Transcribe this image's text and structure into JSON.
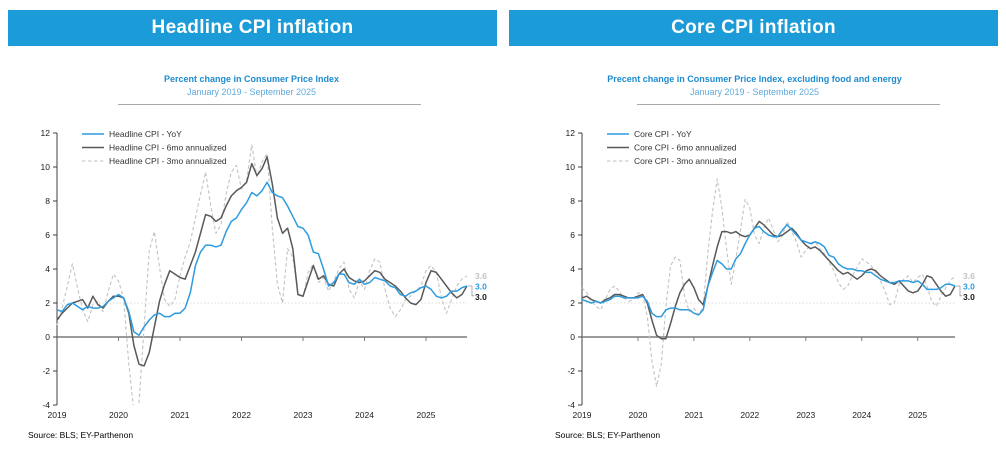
{
  "colors": {
    "banner_blue": "#1B9CD8",
    "title_blue": "#1E8BD0",
    "subtitle_blue": "#5FABDE",
    "yoy_blue": "#2E9BDF",
    "six_mo_gray": "#595959",
    "three_mo_gray": "#C2C2C2",
    "end_label_black": "#1A1A1A",
    "zero_axis_gray": "#7A7A7A",
    "reference_line_gray": "#DBDBDB"
  },
  "panels": [
    {
      "banner": "Headline CPI inflation",
      "source": "Source: BLS; EY-Parthenon"
    },
    {
      "banner": "Core CPI inflation",
      "source": "Source: BLS; EY-Parthenon"
    }
  ],
  "chart_data": [
    {
      "type": "line",
      "title": "Percent change in Consumer Price Index",
      "subtitle": "January 2019 - September 2025",
      "x_start": "2019-01",
      "x_end": "2025-09",
      "x_tick_labels": [
        "2019",
        "2020",
        "2021",
        "2022",
        "2023",
        "2024",
        "2025"
      ],
      "ylim": [
        -4,
        12
      ],
      "y_ticks": [
        12,
        10,
        8,
        6,
        4,
        2,
        0,
        -2,
        -4
      ],
      "reference_line": 2,
      "grid": false,
      "legend_position": "top-left",
      "series": [
        {
          "name": "Headline CPI - YoY",
          "color": "#2E9BDF",
          "dash": "solid",
          "values": [
            1.6,
            1.5,
            1.9,
            2.0,
            1.8,
            1.6,
            1.8,
            1.7,
            1.7,
            1.8,
            2.1,
            2.3,
            2.5,
            2.3,
            1.5,
            0.3,
            0.1,
            0.6,
            1.0,
            1.3,
            1.4,
            1.2,
            1.2,
            1.4,
            1.4,
            1.7,
            2.6,
            4.2,
            5.0,
            5.4,
            5.4,
            5.3,
            5.4,
            6.2,
            6.8,
            7.0,
            7.5,
            7.9,
            8.5,
            8.3,
            8.6,
            9.1,
            8.5,
            8.3,
            8.2,
            7.7,
            7.1,
            6.5,
            6.4,
            6.0,
            5.0,
            4.9,
            4.0,
            3.0,
            3.2,
            3.7,
            3.7,
            3.2,
            3.1,
            3.4,
            3.1,
            3.2,
            3.5,
            3.4,
            3.3,
            3.0,
            2.9,
            2.5,
            2.4,
            2.6,
            2.7,
            2.9,
            3.0,
            2.8,
            2.4,
            2.3,
            2.4,
            2.7,
            2.7,
            2.9,
            3.0
          ]
        },
        {
          "name": "Headline CPI - 6mo annualized",
          "color": "#595959",
          "dash": "solid",
          "values": [
            1.0,
            1.4,
            1.7,
            2.0,
            2.1,
            2.2,
            1.7,
            2.4,
            1.9,
            1.7,
            2.1,
            2.4,
            2.4,
            2.3,
            1.4,
            -0.5,
            -1.6,
            -1.7,
            -0.9,
            0.6,
            2.1,
            3.1,
            3.9,
            3.7,
            3.5,
            3.4,
            4.2,
            5.0,
            6.1,
            7.2,
            7.1,
            6.8,
            7.0,
            7.7,
            8.3,
            8.6,
            8.8,
            9.1,
            10.2,
            9.5,
            9.9,
            10.6,
            9.0,
            7.0,
            6.1,
            6.4,
            5.2,
            2.5,
            2.4,
            3.3,
            4.2,
            3.4,
            3.6,
            3.1,
            3.0,
            3.7,
            4.0,
            3.5,
            3.3,
            3.2,
            3.3,
            3.6,
            3.9,
            3.8,
            3.4,
            3.2,
            3.0,
            2.7,
            2.3,
            2.0,
            1.9,
            2.2,
            3.2,
            3.9,
            3.8,
            3.4,
            3.0,
            2.6,
            2.3,
            2.5,
            3.0
          ]
        },
        {
          "name": "Headline CPI - 3mo annualized",
          "color": "#C2C2C2",
          "dash": "dashed",
          "values": [
            0.7,
            1.7,
            3.0,
            4.3,
            2.9,
            1.6,
            0.9,
            1.9,
            2.1,
            1.5,
            2.7,
            3.7,
            3.3,
            2.3,
            -1.6,
            -4.4,
            -3.9,
            0.6,
            5.1,
            6.2,
            4.1,
            2.2,
            1.8,
            2.2,
            3.6,
            4.7,
            5.6,
            7.0,
            8.4,
            9.7,
            7.7,
            6.1,
            6.6,
            8.4,
            9.7,
            10.1,
            8.7,
            9.2,
            11.3,
            9.4,
            10.3,
            10.8,
            6.4,
            3.1,
            2.0,
            5.2,
            4.7,
            2.6,
            2.3,
            3.8,
            4.3,
            3.2,
            3.5,
            2.7,
            3.3,
            4.0,
            4.4,
            2.8,
            2.3,
            3.3,
            2.8,
            3.9,
            4.6,
            4.4,
            2.8,
            1.7,
            1.2,
            1.6,
            2.2,
            2.4,
            2.7,
            3.0,
            3.9,
            4.2,
            3.8,
            2.3,
            1.4,
            2.2,
            3.0,
            3.4,
            3.6
          ]
        }
      ],
      "end_labels": [
        {
          "text": "3.6",
          "value": 3.6,
          "color": "#C2C2C2"
        },
        {
          "text": "3.0",
          "value": 3.0,
          "color": "#2E9BDF"
        },
        {
          "text": "3.0",
          "value": 3.0,
          "color": "#1A1A1A"
        }
      ]
    },
    {
      "type": "line",
      "title": "Precent change in Consumer Price Index, excluding food and energy",
      "subtitle": "January 2019 - September 2025",
      "x_start": "2019-01",
      "x_end": "2025-09",
      "x_tick_labels": [
        "2019",
        "2020",
        "2021",
        "2022",
        "2023",
        "2024",
        "2025"
      ],
      "ylim": [
        -4,
        12
      ],
      "y_ticks": [
        12,
        10,
        8,
        6,
        4,
        2,
        0,
        -2,
        -4
      ],
      "reference_line": 2,
      "grid": false,
      "legend_position": "top-left",
      "series": [
        {
          "name": "Core CPI - YoY",
          "color": "#2E9BDF",
          "dash": "solid",
          "values": [
            2.2,
            2.1,
            2.0,
            2.1,
            2.0,
            2.1,
            2.2,
            2.4,
            2.4,
            2.3,
            2.3,
            2.3,
            2.3,
            2.4,
            2.1,
            1.4,
            1.2,
            1.2,
            1.6,
            1.7,
            1.7,
            1.6,
            1.6,
            1.6,
            1.4,
            1.3,
            1.6,
            3.0,
            3.8,
            4.5,
            4.3,
            4.0,
            4.0,
            4.6,
            4.9,
            5.5,
            6.0,
            6.4,
            6.5,
            6.2,
            6.0,
            5.9,
            5.9,
            6.3,
            6.6,
            6.3,
            6.0,
            5.7,
            5.6,
            5.5,
            5.6,
            5.5,
            5.3,
            4.8,
            4.7,
            4.3,
            4.1,
            4.0,
            4.0,
            3.9,
            3.9,
            3.8,
            3.8,
            3.6,
            3.4,
            3.3,
            3.2,
            3.2,
            3.3,
            3.3,
            3.3,
            3.2,
            3.3,
            3.1,
            2.8,
            2.8,
            2.8,
            2.9,
            3.1,
            3.1,
            3.0
          ]
        },
        {
          "name": "Core CPI - 6mo annualized",
          "color": "#595959",
          "dash": "solid",
          "values": [
            2.3,
            2.4,
            2.2,
            2.1,
            2.0,
            2.2,
            2.3,
            2.5,
            2.5,
            2.4,
            2.3,
            2.3,
            2.4,
            2.5,
            2.0,
            1.0,
            0.1,
            -0.1,
            -0.1,
            0.8,
            1.8,
            2.6,
            3.1,
            3.4,
            2.9,
            2.2,
            1.9,
            3.0,
            4.2,
            5.3,
            6.2,
            6.2,
            6.1,
            6.2,
            6.0,
            5.9,
            6.0,
            6.4,
            6.8,
            6.6,
            6.3,
            6.0,
            5.9,
            6.0,
            6.2,
            6.4,
            6.1,
            5.7,
            5.4,
            5.2,
            5.3,
            5.1,
            4.8,
            4.5,
            4.2,
            3.9,
            3.7,
            3.8,
            3.6,
            3.4,
            3.6,
            3.9,
            4.0,
            3.9,
            3.6,
            3.4,
            3.2,
            3.1,
            3.3,
            3.0,
            2.7,
            2.6,
            2.7,
            3.1,
            3.6,
            3.5,
            3.1,
            2.7,
            2.4,
            2.5,
            3.0
          ]
        },
        {
          "name": "Core CPI - 3mo annualized",
          "color": "#C2C2C2",
          "dash": "dashed",
          "values": [
            2.9,
            2.6,
            2.2,
            1.8,
            1.6,
            2.2,
            2.8,
            3.0,
            2.7,
            2.3,
            2.1,
            2.2,
            2.6,
            2.5,
            1.2,
            -1.4,
            -2.9,
            -1.6,
            1.8,
            4.2,
            4.7,
            4.5,
            2.4,
            1.5,
            1.7,
            1.3,
            1.8,
            5.0,
            7.4,
            9.3,
            7.6,
            5.2,
            3.1,
            4.6,
            6.3,
            8.1,
            7.6,
            6.0,
            5.5,
            6.4,
            7.0,
            6.3,
            5.6,
            6.0,
            6.8,
            6.2,
            5.6,
            4.7,
            5.1,
            5.4,
            5.6,
            5.2,
            4.9,
            4.4,
            3.9,
            3.2,
            2.8,
            3.0,
            3.6,
            4.1,
            4.6,
            4.4,
            4.2,
            3.8,
            3.3,
            2.7,
            1.9,
            2.0,
            3.1,
            3.4,
            3.6,
            3.2,
            3.5,
            3.7,
            3.0,
            2.1,
            1.8,
            2.4,
            2.9,
            3.3,
            3.6
          ]
        }
      ],
      "end_labels": [
        {
          "text": "3.6",
          "value": 3.6,
          "color": "#C2C2C2"
        },
        {
          "text": "3.0",
          "value": 3.0,
          "color": "#2E9BDF"
        },
        {
          "text": "3.0",
          "value": 3.0,
          "color": "#1A1A1A"
        }
      ]
    }
  ]
}
